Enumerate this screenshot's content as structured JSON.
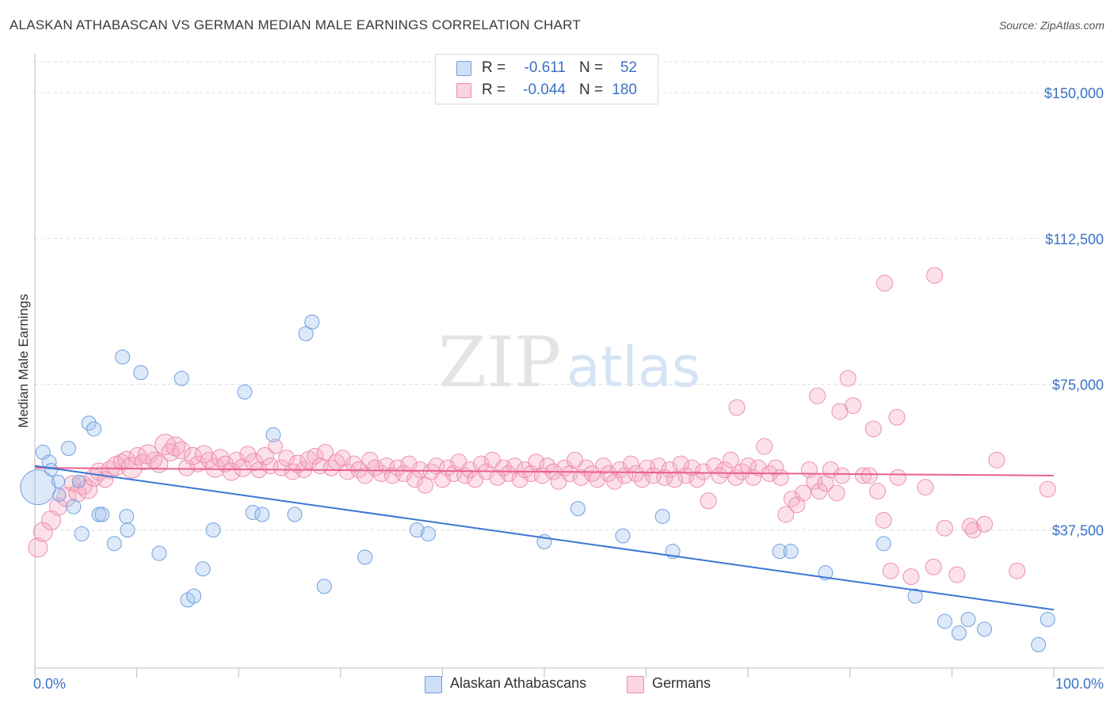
{
  "header": {
    "title": "ALASKAN ATHABASCAN VS GERMAN MEDIAN MALE EARNINGS CORRELATION CHART",
    "source": "Source: ZipAtlas.com"
  },
  "watermark": {
    "zip": "ZIP",
    "atlas": "atlas"
  },
  "legend": {
    "rows": [
      {
        "r_label": "R =",
        "r_value": "-0.611",
        "n_label": "N =",
        "n_value": "52",
        "color": "#9dc0ef"
      },
      {
        "r_label": "R =",
        "r_value": "-0.044",
        "n_label": "N =",
        "n_value": "180",
        "color": "#f5a9c0"
      }
    ]
  },
  "bottom_legend": [
    {
      "label": "Alaskan Athabascans",
      "color": "#9dc0ef"
    },
    {
      "label": "Germans",
      "color": "#f5a9c0"
    }
  ],
  "colors": {
    "blue_fill": "rgba(157,192,239,0.35)",
    "blue_stroke": "#6f9fe0",
    "blue_line": "#3a76d4",
    "pink_fill": "rgba(245,169,192,0.35)",
    "pink_stroke": "#ec8fae",
    "pink_line": "#e8608c",
    "axis_text": "#3b72c6",
    "grid": "#dddddd"
  },
  "chart_data": {
    "type": "scatter",
    "title": "ALASKAN ATHABASCAN VS GERMAN MEDIAN MALE EARNINGS CORRELATION CHART",
    "xlabel": "",
    "ylabel": "Median Male Earnings",
    "x_ticks": [
      "0.0%",
      "100.0%"
    ],
    "y_ticks": [
      {
        "value": 37500,
        "label": "$37,500"
      },
      {
        "value": 75000,
        "label": "$75,000"
      },
      {
        "value": 112500,
        "label": "$112,500"
      },
      {
        "value": 150000,
        "label": "$150,000"
      }
    ],
    "xlim": [
      0,
      100
    ],
    "ylim": [
      2000,
      160000
    ],
    "grid": true,
    "legend_position": "top-center",
    "series": [
      {
        "name": "Alaskan Athabascans",
        "r": -0.611,
        "n": 52,
        "trend": {
          "x": [
            0,
            100
          ],
          "y": [
            54000,
            17000
          ]
        },
        "points": [
          [
            0.3,
            48500,
            22
          ],
          [
            0.8,
            57500,
            9
          ],
          [
            1.4,
            55000,
            9
          ],
          [
            1.6,
            53000,
            8
          ],
          [
            2.3,
            50000,
            8
          ],
          [
            2.4,
            46500,
            8
          ],
          [
            3.3,
            58500,
            9
          ],
          [
            3.8,
            43500,
            9
          ],
          [
            4.3,
            50000,
            8
          ],
          [
            4.6,
            36500,
            9
          ],
          [
            5.3,
            65000,
            9
          ],
          [
            5.8,
            63500,
            9
          ],
          [
            6.3,
            41500,
            9
          ],
          [
            6.6,
            41500,
            9
          ],
          [
            7.8,
            34000,
            9
          ],
          [
            8.6,
            82000,
            9
          ],
          [
            9.0,
            41000,
            9
          ],
          [
            9.1,
            37500,
            9
          ],
          [
            10.4,
            78000,
            9
          ],
          [
            12.2,
            31500,
            9
          ],
          [
            14.4,
            76500,
            9
          ],
          [
            15.0,
            19500,
            9
          ],
          [
            15.6,
            20500,
            9
          ],
          [
            16.5,
            27500,
            9
          ],
          [
            17.5,
            37500,
            9
          ],
          [
            20.6,
            73000,
            9
          ],
          [
            21.4,
            42000,
            9
          ],
          [
            22.3,
            41500,
            9
          ],
          [
            23.4,
            62000,
            9
          ],
          [
            25.5,
            41500,
            9
          ],
          [
            26.6,
            88000,
            9
          ],
          [
            27.2,
            91000,
            9
          ],
          [
            28.4,
            23000,
            9
          ],
          [
            32.4,
            30500,
            9
          ],
          [
            37.5,
            37500,
            9
          ],
          [
            38.6,
            36500,
            9
          ],
          [
            50.0,
            34500,
            9
          ],
          [
            53.3,
            43000,
            9
          ],
          [
            57.7,
            36000,
            9
          ],
          [
            61.6,
            41000,
            9
          ],
          [
            62.6,
            32000,
            9
          ],
          [
            73.1,
            32000,
            9
          ],
          [
            74.2,
            32000,
            9
          ],
          [
            77.6,
            26500,
            9
          ],
          [
            83.3,
            34000,
            9
          ],
          [
            86.4,
            20500,
            9
          ],
          [
            89.3,
            14000,
            9
          ],
          [
            90.7,
            11000,
            9
          ],
          [
            91.6,
            14500,
            9
          ],
          [
            93.2,
            12000,
            9
          ],
          [
            98.5,
            8000,
            9
          ],
          [
            99.4,
            14500,
            9
          ]
        ]
      },
      {
        "name": "Germans",
        "r": -0.044,
        "n": 180,
        "trend": {
          "x": [
            0,
            100
          ],
          "y": [
            53500,
            51500
          ]
        },
        "points": [
          [
            0.3,
            33000,
            12
          ],
          [
            0.8,
            37000,
            12
          ],
          [
            1.6,
            40000,
            12
          ],
          [
            2.3,
            43500,
            11
          ],
          [
            3.1,
            46000,
            12
          ],
          [
            3.7,
            49500,
            10
          ],
          [
            4.2,
            47000,
            11
          ],
          [
            4.7,
            49000,
            12
          ],
          [
            5.2,
            48000,
            12
          ],
          [
            5.8,
            51000,
            11
          ],
          [
            6.3,
            52500,
            11
          ],
          [
            6.9,
            50500,
            10
          ],
          [
            7.4,
            53000,
            11
          ],
          [
            8.0,
            54000,
            12
          ],
          [
            8.5,
            55000,
            10
          ],
          [
            9.0,
            55500,
            11
          ],
          [
            9.5,
            53500,
            13
          ],
          [
            10.1,
            56500,
            11
          ],
          [
            10.6,
            55000,
            10
          ],
          [
            11.1,
            57000,
            12
          ],
          [
            11.7,
            55500,
            10
          ],
          [
            12.2,
            54500,
            11
          ],
          [
            12.8,
            59500,
            13
          ],
          [
            13.3,
            57500,
            11
          ],
          [
            13.8,
            59000,
            12
          ],
          [
            14.4,
            58000,
            11
          ],
          [
            14.9,
            53500,
            10
          ],
          [
            15.5,
            56500,
            11
          ],
          [
            16.0,
            54500,
            10
          ],
          [
            16.6,
            57000,
            11
          ],
          [
            17.1,
            55500,
            10
          ],
          [
            17.7,
            53500,
            12
          ],
          [
            18.2,
            56000,
            11
          ],
          [
            18.7,
            54500,
            10
          ],
          [
            19.3,
            52500,
            11
          ],
          [
            19.8,
            55500,
            10
          ],
          [
            20.4,
            53500,
            11
          ],
          [
            20.9,
            57000,
            10
          ],
          [
            21.5,
            55000,
            11
          ],
          [
            22.0,
            53000,
            10
          ],
          [
            22.6,
            56500,
            11
          ],
          [
            23.1,
            54000,
            10
          ],
          [
            23.6,
            59000,
            9
          ],
          [
            24.2,
            53500,
            10
          ],
          [
            24.7,
            56000,
            10
          ],
          [
            25.3,
            52500,
            10
          ],
          [
            25.8,
            54500,
            11
          ],
          [
            26.4,
            53000,
            10
          ],
          [
            26.9,
            55500,
            11
          ],
          [
            27.5,
            56500,
            10
          ],
          [
            28.0,
            54000,
            10
          ],
          [
            28.5,
            57500,
            10
          ],
          [
            29.1,
            53500,
            10
          ],
          [
            29.6,
            55000,
            10
          ],
          [
            30.2,
            56000,
            10
          ],
          [
            30.7,
            52500,
            10
          ],
          [
            31.3,
            54500,
            10
          ],
          [
            31.8,
            53000,
            10
          ],
          [
            32.4,
            51500,
            10
          ],
          [
            32.9,
            55500,
            10
          ],
          [
            33.4,
            53500,
            10
          ],
          [
            34.0,
            52000,
            10
          ],
          [
            34.5,
            54000,
            10
          ],
          [
            35.1,
            51500,
            10
          ],
          [
            35.6,
            53500,
            10
          ],
          [
            36.2,
            52000,
            10
          ],
          [
            36.7,
            54500,
            10
          ],
          [
            37.3,
            50500,
            10
          ],
          [
            37.8,
            53000,
            10
          ],
          [
            38.3,
            49000,
            10
          ],
          [
            38.9,
            52500,
            10
          ],
          [
            39.4,
            54000,
            10
          ],
          [
            40.0,
            50500,
            10
          ],
          [
            40.5,
            53500,
            10
          ],
          [
            41.1,
            52000,
            10
          ],
          [
            41.6,
            55000,
            10
          ],
          [
            42.2,
            51500,
            10
          ],
          [
            42.7,
            53000,
            10
          ],
          [
            43.2,
            50500,
            10
          ],
          [
            43.8,
            54500,
            10
          ],
          [
            44.3,
            52500,
            10
          ],
          [
            44.9,
            55500,
            10
          ],
          [
            45.4,
            51000,
            10
          ],
          [
            46.0,
            53500,
            10
          ],
          [
            46.5,
            52000,
            10
          ],
          [
            47.1,
            54000,
            10
          ],
          [
            47.6,
            50500,
            10
          ],
          [
            48.1,
            53000,
            10
          ],
          [
            48.7,
            52000,
            10
          ],
          [
            49.2,
            55000,
            10
          ],
          [
            49.8,
            51500,
            10
          ],
          [
            50.3,
            54000,
            10
          ],
          [
            50.9,
            52500,
            10
          ],
          [
            51.4,
            50000,
            10
          ],
          [
            52.0,
            53500,
            10
          ],
          [
            52.5,
            52000,
            10
          ],
          [
            53.0,
            55500,
            10
          ],
          [
            53.6,
            51000,
            10
          ],
          [
            54.1,
            53500,
            10
          ],
          [
            54.7,
            52000,
            10
          ],
          [
            55.2,
            50500,
            10
          ],
          [
            55.8,
            54000,
            10
          ],
          [
            56.3,
            52000,
            10
          ],
          [
            56.9,
            50000,
            10
          ],
          [
            57.4,
            53000,
            10
          ],
          [
            57.9,
            51500,
            10
          ],
          [
            58.5,
            54500,
            10
          ],
          [
            59.0,
            52000,
            10
          ],
          [
            59.6,
            50500,
            10
          ],
          [
            60.1,
            53500,
            10
          ],
          [
            60.7,
            51500,
            10
          ],
          [
            61.2,
            54000,
            10
          ],
          [
            61.8,
            51000,
            10
          ],
          [
            62.3,
            53000,
            10
          ],
          [
            62.8,
            50500,
            10
          ],
          [
            63.4,
            54500,
            10
          ],
          [
            63.9,
            51500,
            10
          ],
          [
            64.5,
            53500,
            10
          ],
          [
            65.0,
            50500,
            10
          ],
          [
            65.6,
            52500,
            10
          ],
          [
            66.1,
            45000,
            10
          ],
          [
            66.7,
            54000,
            10
          ],
          [
            67.2,
            51500,
            10
          ],
          [
            67.7,
            53000,
            10
          ],
          [
            68.3,
            55500,
            10
          ],
          [
            68.8,
            51000,
            10
          ],
          [
            69.4,
            52500,
            10
          ],
          [
            70.0,
            54000,
            10
          ],
          [
            70.5,
            51000,
            10
          ],
          [
            71.0,
            53500,
            10
          ],
          [
            71.6,
            59000,
            10
          ],
          [
            72.1,
            52000,
            10
          ],
          [
            72.7,
            53500,
            10
          ],
          [
            73.2,
            51000,
            10
          ],
          [
            73.7,
            41500,
            10
          ],
          [
            74.3,
            45500,
            10
          ],
          [
            74.8,
            44000,
            10
          ],
          [
            75.4,
            47000,
            10
          ],
          [
            76.0,
            53000,
            10
          ],
          [
            76.5,
            50000,
            10
          ],
          [
            77.0,
            47500,
            10
          ],
          [
            77.6,
            49500,
            10
          ],
          [
            78.1,
            53000,
            10
          ],
          [
            78.7,
            47000,
            10
          ],
          [
            79.2,
            51500,
            10
          ],
          [
            79.8,
            76500,
            10
          ],
          [
            80.3,
            69500,
            10
          ],
          [
            81.3,
            51500,
            10
          ],
          [
            81.9,
            51500,
            10
          ],
          [
            82.7,
            47500,
            10
          ],
          [
            83.3,
            40000,
            10
          ],
          [
            84.0,
            27000,
            10
          ],
          [
            84.7,
            51000,
            10
          ],
          [
            86.0,
            25500,
            10
          ],
          [
            87.4,
            48500,
            10
          ],
          [
            88.2,
            28000,
            10
          ],
          [
            89.3,
            38000,
            10
          ],
          [
            90.5,
            26000,
            10
          ],
          [
            92.1,
            37500,
            10
          ],
          [
            93.2,
            39000,
            10
          ],
          [
            94.4,
            55500,
            10
          ],
          [
            96.4,
            27000,
            10
          ],
          [
            99.4,
            48000,
            10
          ],
          [
            83.4,
            101000,
            10
          ],
          [
            88.3,
            103000,
            10
          ],
          [
            68.9,
            69000,
            10
          ],
          [
            76.8,
            72000,
            10
          ],
          [
            79.0,
            68000,
            10
          ],
          [
            82.3,
            63500,
            10
          ],
          [
            84.6,
            66500,
            10
          ],
          [
            91.8,
            38500,
            10
          ]
        ]
      }
    ]
  }
}
